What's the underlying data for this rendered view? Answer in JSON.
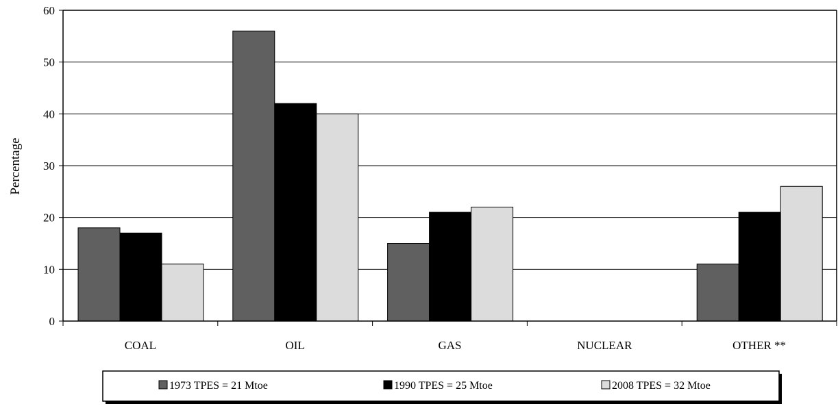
{
  "chart_data": {
    "type": "bar",
    "title": "",
    "xlabel": "",
    "ylabel": "Percentage",
    "ylim": [
      0,
      60
    ],
    "yticks": [
      0,
      10,
      20,
      30,
      40,
      50,
      60
    ],
    "grid": true,
    "legend_position": "bottom",
    "categories": [
      "COAL",
      "OIL",
      "GAS",
      "NUCLEAR",
      "OTHER **"
    ],
    "series": [
      {
        "name": "1973 TPES = 21 Mtoe",
        "color": "#606060",
        "values": [
          18,
          56,
          15,
          0,
          11
        ]
      },
      {
        "name": "1990 TPES = 25 Mtoe",
        "color": "#000000",
        "values": [
          17,
          42,
          21,
          0,
          21
        ]
      },
      {
        "name": "2008 TPES = 32 Mtoe",
        "color": "#dcdcdc",
        "values": [
          11,
          40,
          22,
          0,
          26
        ]
      }
    ]
  }
}
